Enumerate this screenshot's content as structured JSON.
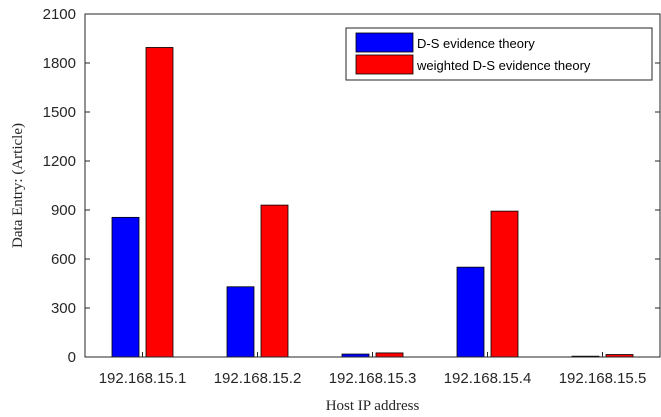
{
  "chart_data": {
    "type": "bar",
    "title": "",
    "xlabel": "Host IP address",
    "ylabel": "Data Entry: (Article)",
    "categories": [
      "192.168.15.1",
      "192.168.15.2",
      "192.168.15.3",
      "192.168.15.4",
      "192.168.15.5"
    ],
    "series": [
      {
        "name": "D-S evidence theory",
        "color": "#0000ff",
        "values": [
          855,
          430,
          18,
          550,
          5
        ]
      },
      {
        "name": "weighted D-S evidence theory",
        "color": "#ff0000",
        "values": [
          1895,
          930,
          25,
          893,
          15
        ]
      }
    ],
    "ylim": [
      0,
      2100
    ],
    "yticks": [
      0,
      300,
      600,
      900,
      1200,
      1500,
      1800,
      2100
    ],
    "grid": false,
    "legend_position": "top-right"
  }
}
